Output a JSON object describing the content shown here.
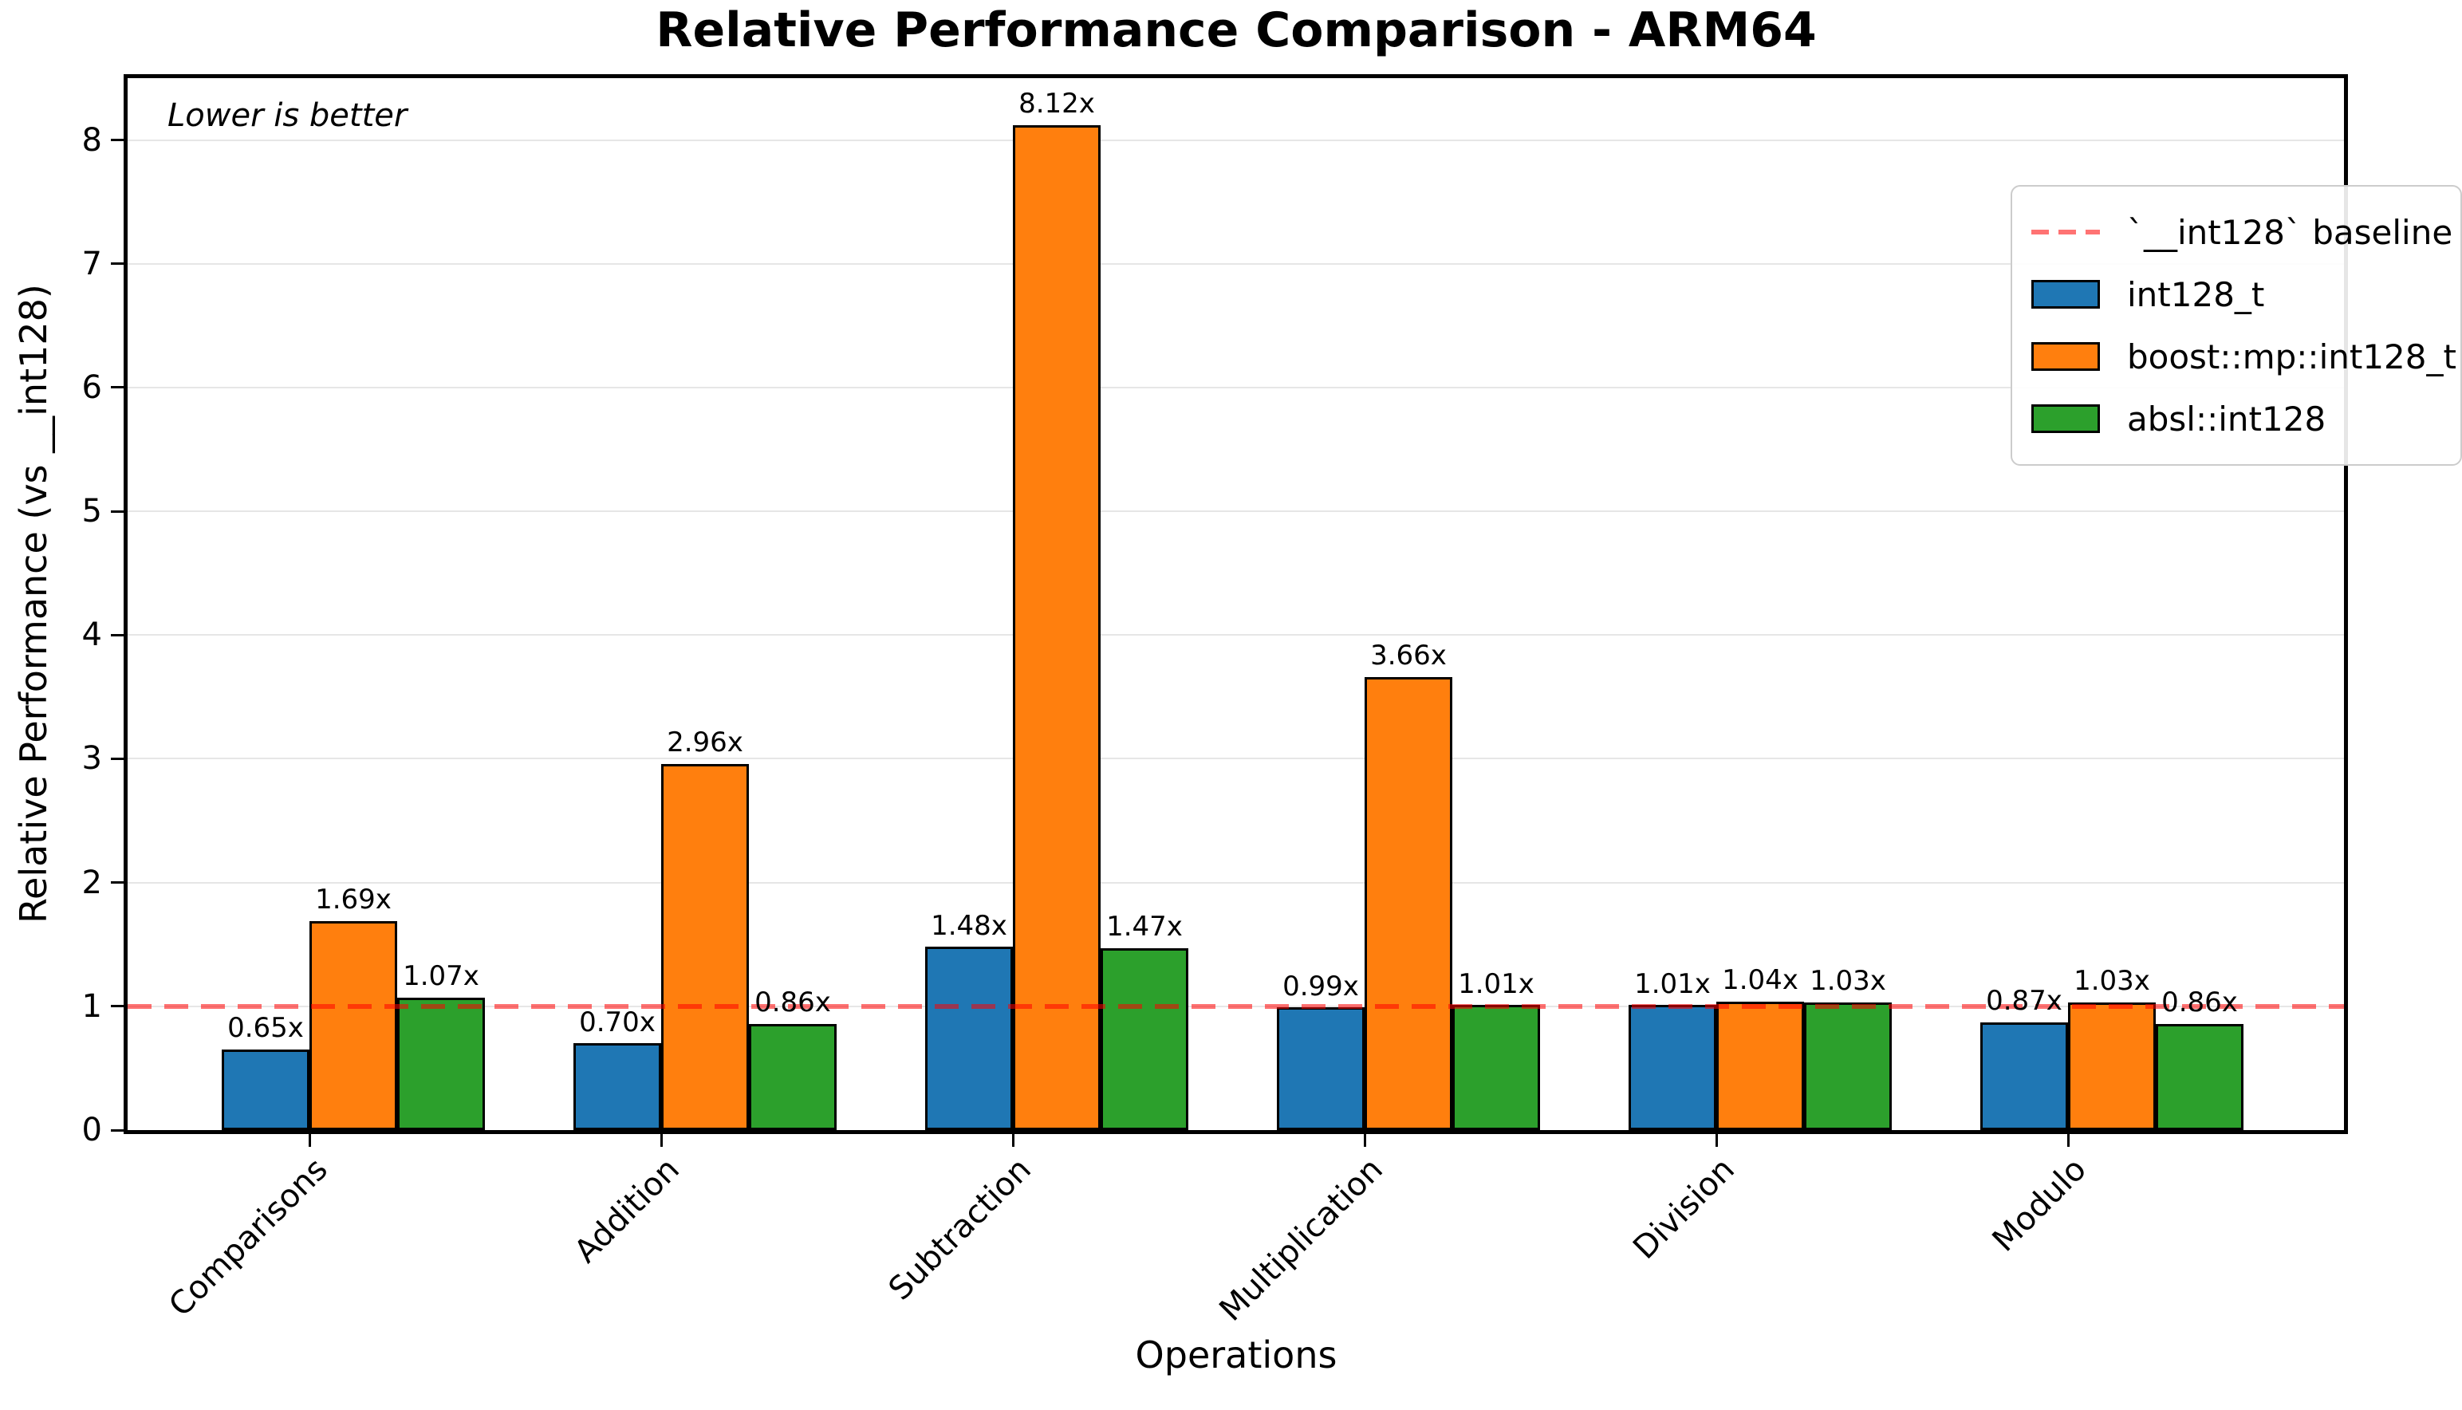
{
  "chart_data": {
    "type": "bar",
    "title": "Relative Performance Comparison - ARM64",
    "annotation": "Lower is better",
    "xlabel": "Operations",
    "ylabel": "Relative Performance (vs __int128)",
    "ylim": [
      0,
      8.5
    ],
    "y_ticks": [
      0,
      1,
      2,
      3,
      4,
      5,
      6,
      7,
      8
    ],
    "grid": "horizontal",
    "legend_position": "upper right",
    "categories": [
      "Comparisons",
      "Addition",
      "Subtraction",
      "Multiplication",
      "Division",
      "Modulo"
    ],
    "series": [
      {
        "name": "int128_t",
        "color": "#1f77b4",
        "values": [
          0.65,
          0.7,
          1.48,
          0.99,
          1.01,
          0.87
        ]
      },
      {
        "name": "boost::mp::int128_t",
        "color": "#ff7f0e",
        "values": [
          1.69,
          2.96,
          8.12,
          3.66,
          1.04,
          1.03
        ]
      },
      {
        "name": "absl::int128",
        "color": "#2ca02c",
        "values": [
          1.07,
          0.86,
          1.47,
          1.01,
          1.03,
          0.86
        ]
      }
    ],
    "value_label_suffix": "x",
    "baseline": {
      "value": 1,
      "label": "`__int128` baseline",
      "color": "rgba(255,0,0,0.55)",
      "style": "dashed"
    }
  }
}
